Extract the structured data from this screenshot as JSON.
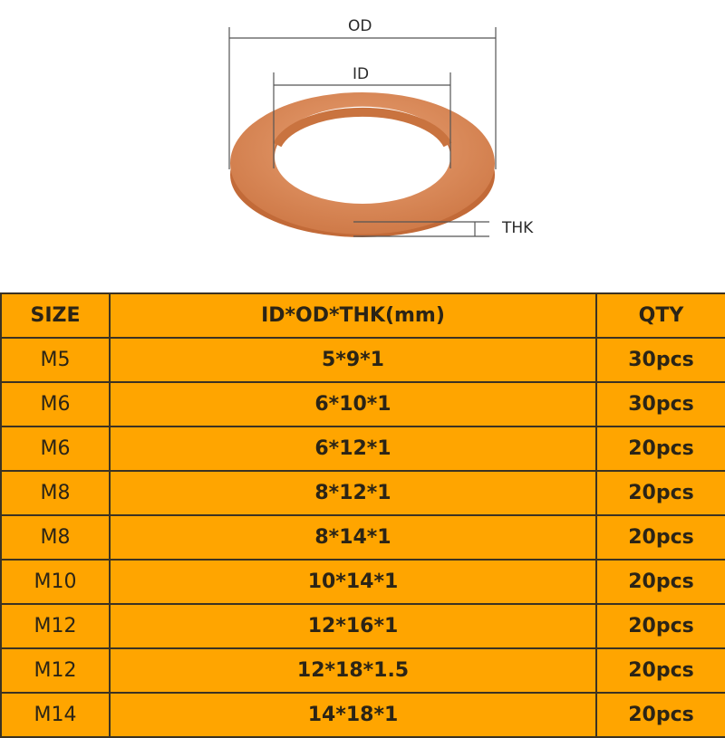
{
  "diagram": {
    "od_label": "OD",
    "id_label": "ID",
    "thk_label": "THK",
    "washer_color": "#d98a5a"
  },
  "table": {
    "headers": [
      "SIZE",
      "ID*OD*THK(mm)",
      "QTY"
    ],
    "background": "#ffa500",
    "rows": [
      {
        "size": "M5",
        "dims": "5*9*1",
        "qty": "30pcs"
      },
      {
        "size": "M6",
        "dims": "6*10*1",
        "qty": "30pcs"
      },
      {
        "size": "M6",
        "dims": "6*12*1",
        "qty": "20pcs"
      },
      {
        "size": "M8",
        "dims": "8*12*1",
        "qty": "20pcs"
      },
      {
        "size": "M8",
        "dims": "8*14*1",
        "qty": "20pcs"
      },
      {
        "size": "M10",
        "dims": "10*14*1",
        "qty": "20pcs"
      },
      {
        "size": "M12",
        "dims": "12*16*1",
        "qty": "20pcs"
      },
      {
        "size": "M12",
        "dims": "12*18*1.5",
        "qty": "20pcs"
      },
      {
        "size": "M14",
        "dims": "14*18*1",
        "qty": "20pcs"
      }
    ]
  }
}
